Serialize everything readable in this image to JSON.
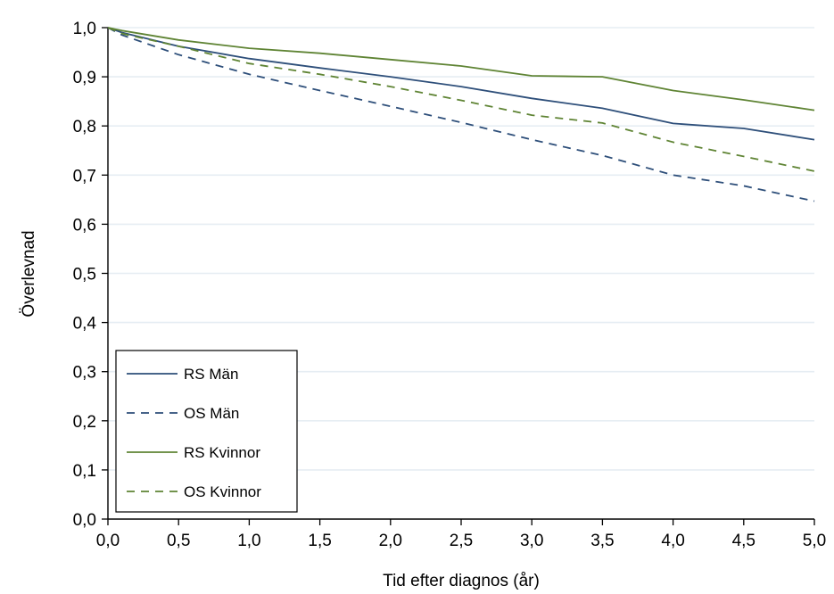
{
  "chart_data": {
    "type": "line",
    "xlabel": "Tid efter diagnos (år)",
    "ylabel": "Överlevnad",
    "xlim": [
      0,
      5
    ],
    "ylim": [
      0,
      1
    ],
    "x_ticks": [
      "0,0",
      "0,5",
      "1,0",
      "1,5",
      "2,0",
      "2,5",
      "3,0",
      "3,5",
      "4,0",
      "4,5",
      "5,0"
    ],
    "y_ticks": [
      "0,0",
      "0,1",
      "0,2",
      "0,3",
      "0,4",
      "0,5",
      "0,6",
      "0,7",
      "0,8",
      "0,9",
      "1,0"
    ],
    "grid": "horizontal",
    "legend_position": "bottom-left",
    "x": [
      0,
      0.1,
      0.5,
      1.0,
      1.5,
      2.0,
      2.5,
      3.0,
      3.5,
      4.0,
      4.5,
      5.0
    ],
    "series": [
      {
        "name": "RS Män",
        "color": "#2e4f7a",
        "dash": "solid",
        "values": [
          1.0,
          0.99,
          0.962,
          0.937,
          0.918,
          0.9,
          0.88,
          0.856,
          0.836,
          0.805,
          0.795,
          0.772
        ]
      },
      {
        "name": "OS Män",
        "color": "#2e4f7a",
        "dash": "dashed",
        "values": [
          1.0,
          0.985,
          0.945,
          0.905,
          0.872,
          0.84,
          0.807,
          0.772,
          0.74,
          0.7,
          0.678,
          0.647
        ]
      },
      {
        "name": "RS Kvinnor",
        "color": "#5f8434",
        "dash": "solid",
        "values": [
          1.0,
          0.994,
          0.975,
          0.958,
          0.948,
          0.935,
          0.922,
          0.902,
          0.9,
          0.872,
          0.853,
          0.832
        ]
      },
      {
        "name": "OS Kvinnor",
        "color": "#5f8434",
        "dash": "dashed",
        "values": [
          1.0,
          0.988,
          0.962,
          0.927,
          0.905,
          0.88,
          0.852,
          0.822,
          0.806,
          0.767,
          0.738,
          0.708
        ]
      }
    ]
  }
}
